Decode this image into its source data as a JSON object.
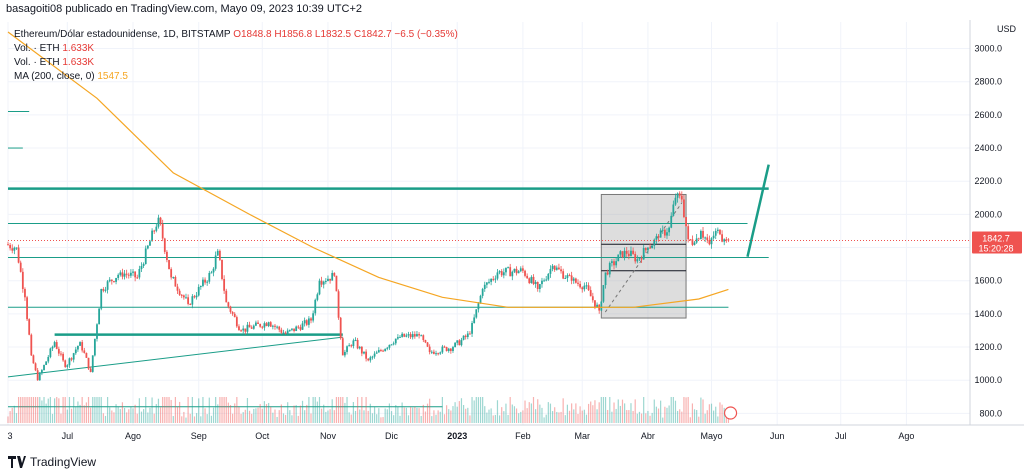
{
  "header": {
    "published_line": "basagoiti08 publicado en TradingView.com, Mayo 09, 2023 10:39 UTC+2"
  },
  "legend": {
    "symbol": "Ethereum/Dólar estadounidense, 1D, BITSTAMP",
    "ohlc": "O1848.8 H1856.8 L1832.5 C1842.7 −6.5 (−0.35%)",
    "vol_label_1": "Vol. · ETH",
    "vol_value_1": "1.633K",
    "vol_label_2": "Vol. · ETH",
    "vol_value_2": "1.633K",
    "ma_label": "MA (200, close, 0)",
    "ma_value": "1547.5"
  },
  "price_axis": {
    "currency": "USD",
    "ticks": [
      "3000.0",
      "2800.0",
      "2600.0",
      "2400.0",
      "2200.0",
      "2000.0",
      "1800.0",
      "1600.0",
      "1400.0",
      "1200.0",
      "1000.0",
      "800.0"
    ],
    "last_price": "1842.7",
    "countdown": "15:20:28"
  },
  "time_axis": {
    "ticks": [
      "3",
      "Jul",
      "Ago",
      "Sep",
      "Oct",
      "Nov",
      "Dic",
      "2023",
      "Feb",
      "Mar",
      "Abr",
      "Mayo",
      "Jun",
      "Jul",
      "Ago"
    ]
  },
  "footer": {
    "brand": "TradingView"
  },
  "colors": {
    "up": "#26a69a",
    "down": "#ef5350",
    "ma": "#f5a623",
    "trendline": "#1a9d88"
  },
  "chart_data": {
    "type": "candlestick",
    "symbol": "ETH/USD",
    "timeframe": "1D",
    "ylim": [
      730,
      3160
    ],
    "y_scale": "linear",
    "x_range": [
      "2022-06-03",
      "2023-08-31"
    ],
    "grid": true,
    "close_anchors": [
      {
        "date": "2022-06-03",
        "close": 1820
      },
      {
        "date": "2022-06-08",
        "close": 1800
      },
      {
        "date": "2022-06-12",
        "close": 1500
      },
      {
        "date": "2022-06-15",
        "close": 1150
      },
      {
        "date": "2022-06-18",
        "close": 1000
      },
      {
        "date": "2022-06-26",
        "close": 1230
      },
      {
        "date": "2022-07-01",
        "close": 1080
      },
      {
        "date": "2022-07-08",
        "close": 1230
      },
      {
        "date": "2022-07-13",
        "close": 1050
      },
      {
        "date": "2022-07-18",
        "close": 1550
      },
      {
        "date": "2022-07-27",
        "close": 1650
      },
      {
        "date": "2022-08-04",
        "close": 1620
      },
      {
        "date": "2022-08-14",
        "close": 1980
      },
      {
        "date": "2022-08-20",
        "close": 1620
      },
      {
        "date": "2022-08-28",
        "close": 1460
      },
      {
        "date": "2022-09-08",
        "close": 1650
      },
      {
        "date": "2022-09-11",
        "close": 1780
      },
      {
        "date": "2022-09-15",
        "close": 1470
      },
      {
        "date": "2022-09-22",
        "close": 1300
      },
      {
        "date": "2022-10-05",
        "close": 1350
      },
      {
        "date": "2022-10-13",
        "close": 1280
      },
      {
        "date": "2022-10-25",
        "close": 1360
      },
      {
        "date": "2022-10-29",
        "close": 1600
      },
      {
        "date": "2022-11-05",
        "close": 1630
      },
      {
        "date": "2022-11-09",
        "close": 1150
      },
      {
        "date": "2022-11-14",
        "close": 1240
      },
      {
        "date": "2022-11-21",
        "close": 1120
      },
      {
        "date": "2022-12-05",
        "close": 1260
      },
      {
        "date": "2022-12-15",
        "close": 1270
      },
      {
        "date": "2022-12-20",
        "close": 1170
      },
      {
        "date": "2022-12-31",
        "close": 1200
      },
      {
        "date": "2023-01-08",
        "close": 1280
      },
      {
        "date": "2023-01-14",
        "close": 1550
      },
      {
        "date": "2023-01-21",
        "close": 1650
      },
      {
        "date": "2023-02-02",
        "close": 1660
      },
      {
        "date": "2023-02-09",
        "close": 1550
      },
      {
        "date": "2023-02-16",
        "close": 1690
      },
      {
        "date": "2023-02-25",
        "close": 1600
      },
      {
        "date": "2023-03-03",
        "close": 1570
      },
      {
        "date": "2023-03-10",
        "close": 1420
      },
      {
        "date": "2023-03-13",
        "close": 1650
      },
      {
        "date": "2023-03-22",
        "close": 1780
      },
      {
        "date": "2023-03-28",
        "close": 1730
      },
      {
        "date": "2023-04-02",
        "close": 1800
      },
      {
        "date": "2023-04-07",
        "close": 1860
      },
      {
        "date": "2023-04-12",
        "close": 1920
      },
      {
        "date": "2023-04-15",
        "close": 2100
      },
      {
        "date": "2023-04-18",
        "close": 2090
      },
      {
        "date": "2023-04-21",
        "close": 1850
      },
      {
        "date": "2023-04-24",
        "close": 1830
      },
      {
        "date": "2023-04-27",
        "close": 1900
      },
      {
        "date": "2023-05-01",
        "close": 1820
      },
      {
        "date": "2023-05-04",
        "close": 1900
      },
      {
        "date": "2023-05-06",
        "close": 1880
      },
      {
        "date": "2023-05-08",
        "close": 1850
      },
      {
        "date": "2023-05-09",
        "close": 1842.7
      }
    ],
    "ma200": [
      {
        "date": "2022-06-03",
        "value": 3100
      },
      {
        "date": "2022-07-15",
        "value": 2700
      },
      {
        "date": "2022-08-20",
        "value": 2250
      },
      {
        "date": "2022-09-25",
        "value": 2000
      },
      {
        "date": "2022-10-25",
        "value": 1800
      },
      {
        "date": "2022-11-25",
        "value": 1620
      },
      {
        "date": "2022-12-25",
        "value": 1500
      },
      {
        "date": "2023-01-25",
        "value": 1440
      },
      {
        "date": "2023-02-25",
        "value": 1440
      },
      {
        "date": "2023-03-25",
        "value": 1440
      },
      {
        "date": "2023-04-25",
        "value": 1490
      },
      {
        "date": "2023-05-09",
        "value": 1547.5
      }
    ],
    "horizontal_lines": [
      {
        "price": 2155,
        "from": "2022-06-03",
        "to": "2023-05-28",
        "style": "thick"
      },
      {
        "price": 1945,
        "from": "2022-06-03",
        "to": "2023-05-18",
        "style": "thin"
      },
      {
        "price": 1740,
        "from": "2022-06-03",
        "to": "2023-05-28",
        "style": "thin"
      },
      {
        "price": 1440,
        "from": "2022-06-03",
        "to": "2023-05-09",
        "style": "thin"
      },
      {
        "price": 1275,
        "from": "2022-06-25",
        "to": "2022-11-08",
        "style": "thick"
      },
      {
        "price": 2620,
        "from": "2022-06-03",
        "to": "2022-06-13",
        "style": "thin"
      },
      {
        "price": 2400,
        "from": "2022-06-03",
        "to": "2022-06-10",
        "style": "thin"
      },
      {
        "price": 840,
        "from": "2022-06-03",
        "to": "2022-12-25",
        "style": "thin"
      }
    ],
    "trend_lines": [
      {
        "from": {
          "date": "2022-06-03",
          "price": 1020
        },
        "to": {
          "date": "2022-11-08",
          "price": 1260
        }
      },
      {
        "from": {
          "date": "2023-05-18",
          "price": 1745
        },
        "to": {
          "date": "2023-05-28",
          "price": 2300
        }
      }
    ],
    "price_range_box": {
      "from": "2023-03-10",
      "to": "2023-04-19",
      "top": 2120,
      "bottom": 1375,
      "inner_lines": [
        1820,
        1660
      ]
    },
    "dotted_current_price": 1842.7
  }
}
